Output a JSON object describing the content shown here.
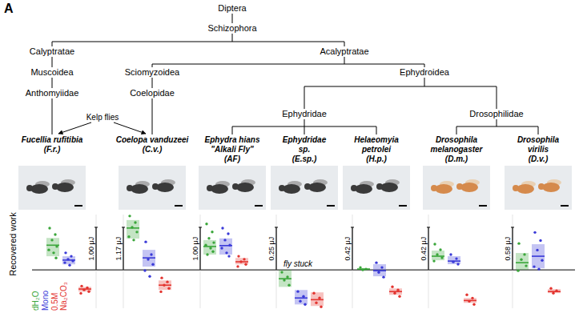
{
  "panel_label": "A",
  "y_label": "Recovered work",
  "baseline": {
    "value": 0,
    "label": "fly stuck"
  },
  "tree": {
    "nodes": [
      {
        "label": "Diptera",
        "parent": null
      },
      {
        "label": "Schizophora",
        "parent": 0
      },
      {
        "label": "Calyptratae",
        "parent": 1
      },
      {
        "label": "Acalyptratae",
        "parent": 1
      },
      {
        "label": "Muscoidea",
        "parent": 2
      },
      {
        "label": "Anthomyiidae",
        "parent": 4
      },
      {
        "label": "Sciomyzoidea",
        "parent": 3
      },
      {
        "label": "Ephydroidea",
        "parent": 3
      },
      {
        "label": "Coelopidae",
        "parent": 6
      },
      {
        "label": "Ephydridae",
        "parent": 7
      },
      {
        "label": "Drosophilidae",
        "parent": 7
      }
    ],
    "species": [
      {
        "lines": [
          "Fucellia rufitibia",
          "(F.r.)"
        ],
        "parent": 5
      },
      {
        "lines": [
          "Coelopa vanduzeei",
          "(C.v.)"
        ],
        "parent": 8
      },
      {
        "lines": [
          "Ephydra hians",
          "\"Alkali Fly\"",
          "(AF)"
        ],
        "parent": 9
      },
      {
        "lines": [
          "Ephydridae",
          "sp.",
          "(E.sp.)"
        ],
        "parent": 9
      },
      {
        "lines": [
          "Helaeomyia",
          "petrolei",
          "(H.p.)"
        ],
        "parent": 9
      },
      {
        "lines": [
          "Drosophila",
          "melanogaster",
          "(D.m.)"
        ],
        "parent": 10
      },
      {
        "lines": [
          "Drosophila",
          "virilis",
          "(D.v.)"
        ],
        "parent": 10
      }
    ],
    "annotation": {
      "text": "Kelp flies",
      "targets": [
        0,
        1
      ]
    }
  },
  "chart_data": [
    {
      "type": "strip",
      "ylim": [
        -0.9,
        1.3
      ],
      "yticks": [
        {
          "value": 1.0,
          "label": "1.00 μJ"
        }
      ],
      "series": [
        {
          "name": "dH₂O",
          "color": "#3aa63a",
          "values": [
            0.98,
            0.83,
            0.7,
            0.55,
            0.47,
            0.4,
            0.28
          ],
          "mean": 0.58,
          "box": [
            0.32,
            0.75
          ]
        },
        {
          "name": "Mono",
          "color": "#3a3ad8",
          "values": [
            0.4,
            0.32,
            0.25,
            0.21,
            0.17,
            0.11
          ],
          "mean": 0.23,
          "box": [
            0.13,
            0.32
          ]
        },
        {
          "name": "0.5M Na₂CO₃",
          "color": "#e3342f",
          "values": [
            -0.38,
            -0.42,
            -0.47,
            -0.51,
            -0.55
          ],
          "mean": -0.45,
          "box": [
            -0.51,
            -0.4
          ]
        }
      ]
    },
    {
      "type": "strip",
      "ylim": [
        -1.053,
        1.521
      ],
      "yticks": [
        {
          "value": 1.17,
          "label": "1.17 μJ"
        }
      ],
      "series": [
        {
          "name": "dH₂O",
          "color": "#3aa63a",
          "values": [
            1.48,
            1.3,
            1.17,
            1.04,
            0.91,
            0.82
          ],
          "mean": 1.15,
          "box": [
            0.86,
            1.37
          ]
        },
        {
          "name": "Mono",
          "color": "#3a3ad8",
          "values": [
            0.77,
            0.42,
            0.29,
            0.15,
            -0.02,
            -0.18
          ],
          "mean": 0.33,
          "box": [
            0.09,
            0.55
          ]
        },
        {
          "name": "0.5M Na₂CO₃",
          "color": "#e3342f",
          "values": [
            -0.22,
            -0.33,
            -0.42,
            -0.51,
            -0.6
          ],
          "mean": -0.42,
          "box": [
            -0.55,
            -0.29
          ]
        }
      ]
    },
    {
      "type": "strip",
      "ylim": [
        -0.9,
        1.3
      ],
      "yticks": [
        {
          "value": 1.0,
          "label": "1.00 μJ"
        }
      ],
      "series": [
        {
          "name": "dH₂O",
          "color": "#3aa63a",
          "values": [
            1.08,
            0.89,
            0.74,
            0.64,
            0.58,
            0.51,
            0.43,
            0.36
          ],
          "mean": 0.55,
          "box": [
            0.36,
            0.7
          ]
        },
        {
          "name": "Mono",
          "color": "#3a3ad8",
          "values": [
            0.98,
            0.85,
            0.7,
            0.58,
            0.51,
            0.4,
            0.32
          ],
          "mean": 0.57,
          "box": [
            0.36,
            0.74
          ]
        },
        {
          "name": "0.5M Na₂CO₃",
          "color": "#e3342f",
          "values": [
            0.32,
            0.25,
            0.19,
            0.13,
            0.08
          ],
          "mean": 0.19,
          "box": [
            0.13,
            0.28
          ]
        }
      ]
    },
    {
      "type": "strip",
      "ylim": [
        -0.225,
        0.325
      ],
      "yticks": [
        {
          "value": 0.25,
          "label": "0.25 μJ"
        }
      ],
      "series": [
        {
          "name": "dH₂O",
          "color": "#3aa63a",
          "values": [
            -0.014,
            -0.042,
            -0.061,
            -0.09
          ],
          "mean": -0.052,
          "box": [
            -0.1,
            0.0
          ]
        },
        {
          "name": "Mono",
          "color": "#3a3ad8",
          "values": [
            -0.127,
            -0.156,
            -0.184,
            -0.203
          ],
          "mean": -0.165,
          "box": [
            -0.203,
            -0.118
          ]
        },
        {
          "name": "0.5M Na₂CO₃",
          "color": "#e3342f",
          "values": [
            -0.137,
            -0.165,
            -0.193,
            -0.217
          ],
          "mean": -0.175,
          "box": [
            -0.212,
            -0.132
          ]
        }
      ]
    },
    {
      "type": "strip",
      "ylim": [
        -0.378,
        0.546
      ],
      "yticks": [
        {
          "value": 0.42,
          "label": "0.42 μJ"
        }
      ],
      "series": [
        {
          "name": "dH₂O",
          "color": "#3aa63a",
          "values": [
            0.024,
            0.008,
            0.0
          ],
          "mean": 0.008,
          "box": [
            0.0,
            0.016
          ]
        },
        {
          "name": "Mono",
          "color": "#3a3ad8",
          "values": [
            0.071,
            0.024,
            -0.024,
            -0.071
          ],
          "mean": -0.008,
          "box": [
            -0.063,
            0.056
          ]
        },
        {
          "name": "0.5M Na₂CO₃",
          "color": "#e3342f",
          "values": [
            -0.167,
            -0.198,
            -0.23,
            -0.262
          ],
          "mean": -0.214,
          "box": [
            -0.246,
            -0.183
          ]
        }
      ]
    },
    {
      "type": "strip",
      "ylim": [
        -0.378,
        0.546
      ],
      "yticks": [
        {
          "value": 0.42,
          "label": "0.42 μJ"
        }
      ],
      "series": [
        {
          "name": "dH₂O",
          "color": "#3aa63a",
          "values": [
            0.254,
            0.198,
            0.151,
            0.119,
            0.087
          ],
          "mean": 0.135,
          "box": [
            0.095,
            0.19
          ]
        },
        {
          "name": "Mono",
          "color": "#3a3ad8",
          "values": [
            0.151,
            0.111,
            0.079,
            0.056
          ],
          "mean": 0.087,
          "box": [
            0.056,
            0.135
          ]
        },
        {
          "name": "0.5M Na₂CO₃",
          "color": "#e3342f",
          "values": [
            -0.246,
            -0.278,
            -0.31,
            -0.341
          ],
          "mean": -0.302,
          "box": [
            -0.325,
            -0.278
          ]
        }
      ]
    },
    {
      "type": "strip",
      "ylim": [
        -0.522,
        0.754
      ],
      "yticks": [
        {
          "value": 0.58,
          "label": "0.58 μJ"
        }
      ],
      "series": [
        {
          "name": "dH₂O",
          "color": "#3aa63a",
          "values": [
            0.36,
            0.21,
            0.14,
            0.055,
            -0.011
          ],
          "mean": 0.098,
          "box": [
            0.0,
            0.23
          ]
        },
        {
          "name": "Mono",
          "color": "#3a3ad8",
          "values": [
            0.51,
            0.4,
            0.27,
            0.13,
            0.044,
            0.011
          ],
          "mean": 0.186,
          "box": [
            0.022,
            0.35
          ]
        },
        {
          "name": "0.5M Na₂CO₃",
          "color": "#e3342f",
          "values": [
            -0.252,
            -0.284,
            -0.317
          ],
          "mean": -0.295,
          "box": [
            -0.317,
            -0.262
          ]
        }
      ]
    }
  ]
}
